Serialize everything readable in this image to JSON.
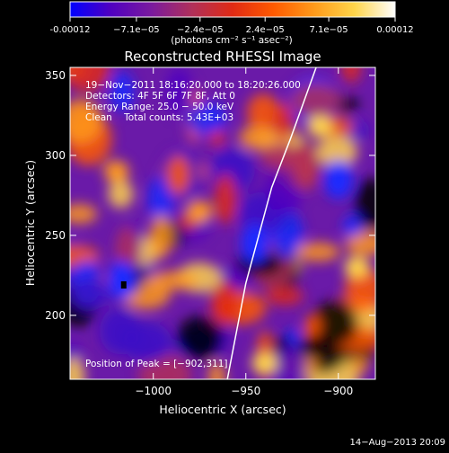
{
  "colorbar": {
    "ticks": [
      {
        "value": -0.00012,
        "label": "-0.00012"
      },
      {
        "value": -7.1e-05,
        "label": "−7.1e−05"
      },
      {
        "value": -2.4e-05,
        "label": "−2.4e−05"
      },
      {
        "value": 2.4e-05,
        "label": "2.4e−05"
      },
      {
        "value": 7.1e-05,
        "label": "7.1e−05"
      },
      {
        "value": 0.00012,
        "label": "0.00012"
      }
    ],
    "range": [
      -0.00012,
      0.00012
    ],
    "units_label": "(photons cm⁻² s⁻¹ asec⁻²)"
  },
  "chart_data": {
    "type": "heatmap",
    "title": "Reconstructed RHESSI Image",
    "xlabel": "Heliocentric X (arcsec)",
    "ylabel": "Heliocentric Y (arcsec)",
    "xlim": [
      -1045,
      -880
    ],
    "ylim": [
      160,
      355
    ],
    "x_ticks": [
      {
        "value": -1000,
        "label": "−1000"
      },
      {
        "value": -950,
        "label": "−950"
      },
      {
        "value": -900,
        "label": "−900"
      }
    ],
    "y_ticks": [
      {
        "value": 200,
        "label": "200"
      },
      {
        "value": 250,
        "label": "250"
      },
      {
        "value": 300,
        "label": "300"
      },
      {
        "value": 350,
        "label": "350"
      }
    ],
    "annotations": [
      "19−Nov−2011 18:16:20.000 to 18:20:26.000",
      "Detectors: 4F 5F 6F 7F 8F, Att 0",
      "Energy Range: 25.0 − 50.0 keV",
      "Clean    Total counts: 5.43E+03"
    ],
    "peak_label": "Position of Peak = [−902,311]",
    "peak": {
      "x": -902,
      "y": 311
    },
    "limb": [
      [
        -960,
        160
      ],
      [
        -955,
        190
      ],
      [
        -950,
        220
      ],
      [
        -943,
        250
      ],
      [
        -936,
        280
      ],
      [
        -926,
        310
      ],
      [
        -912,
        355
      ]
    ],
    "colormap": [
      "#0000ff",
      "#5000c0",
      "#7a1a9e",
      "#b0305a",
      "#e02a14",
      "#ff5a00",
      "#ff9a1a",
      "#ffd54a",
      "#ffffff"
    ],
    "grid": false
  },
  "footer": {
    "timestamp": "14−Aug−2013 20:09"
  }
}
